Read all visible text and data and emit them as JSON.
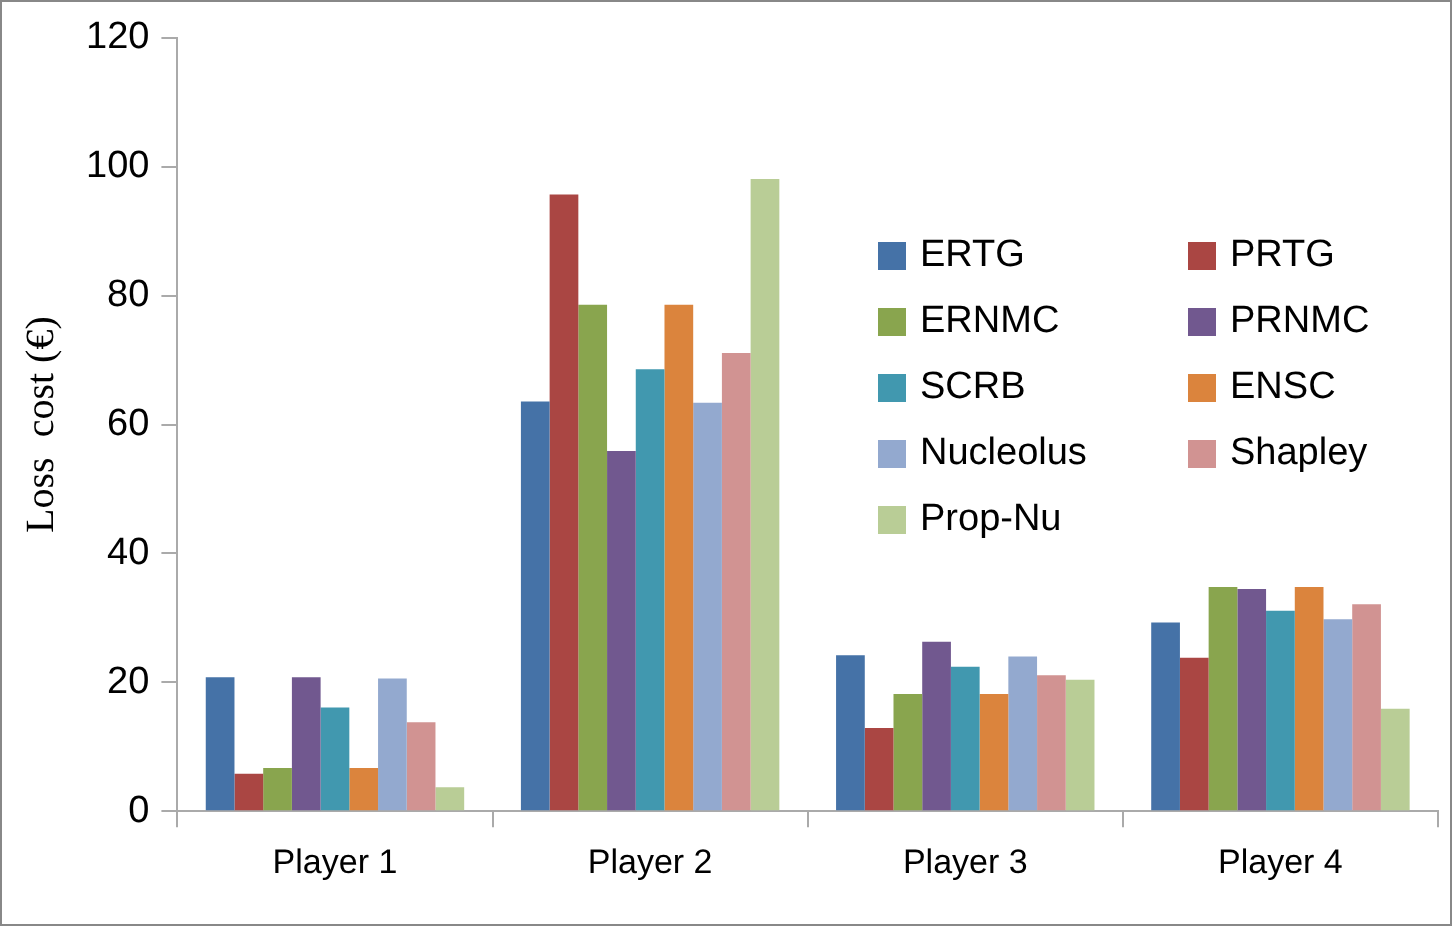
{
  "chart_data": {
    "type": "bar",
    "ylabel": "Loss  cost (€)",
    "categories": [
      "Player 1",
      "Player 2",
      "Player 3",
      "Player 4"
    ],
    "ylim": [
      0,
      120
    ],
    "yticks": [
      0,
      20,
      40,
      60,
      80,
      100,
      120
    ],
    "grid": false,
    "legend": "right",
    "series": [
      {
        "name": "ERTG",
        "color": "#4572a7",
        "values": [
          20.8,
          63.6,
          24.2,
          29.3
        ]
      },
      {
        "name": "PRTG",
        "color": "#aa4643",
        "values": [
          5.8,
          95.7,
          12.9,
          23.8
        ]
      },
      {
        "name": "ERNMC",
        "color": "#89a54e",
        "values": [
          6.7,
          78.6,
          18.2,
          34.8
        ]
      },
      {
        "name": "PRNMC",
        "color": "#71588f",
        "values": [
          20.8,
          55.9,
          26.3,
          34.5
        ]
      },
      {
        "name": "SCRB",
        "color": "#4198af",
        "values": [
          16.1,
          68.6,
          22.4,
          31.1
        ]
      },
      {
        "name": "ENSC",
        "color": "#db843d",
        "values": [
          6.7,
          78.6,
          18.2,
          34.8
        ]
      },
      {
        "name": "Nucleolus",
        "color": "#93a9cf",
        "values": [
          20.6,
          63.4,
          24.0,
          29.8
        ]
      },
      {
        "name": "Shapley",
        "color": "#d19392",
        "values": [
          13.8,
          71.1,
          21.1,
          32.1
        ]
      },
      {
        "name": "Prop-Nu",
        "color": "#b9cd96",
        "values": [
          3.7,
          98.1,
          20.4,
          15.9
        ]
      }
    ]
  }
}
